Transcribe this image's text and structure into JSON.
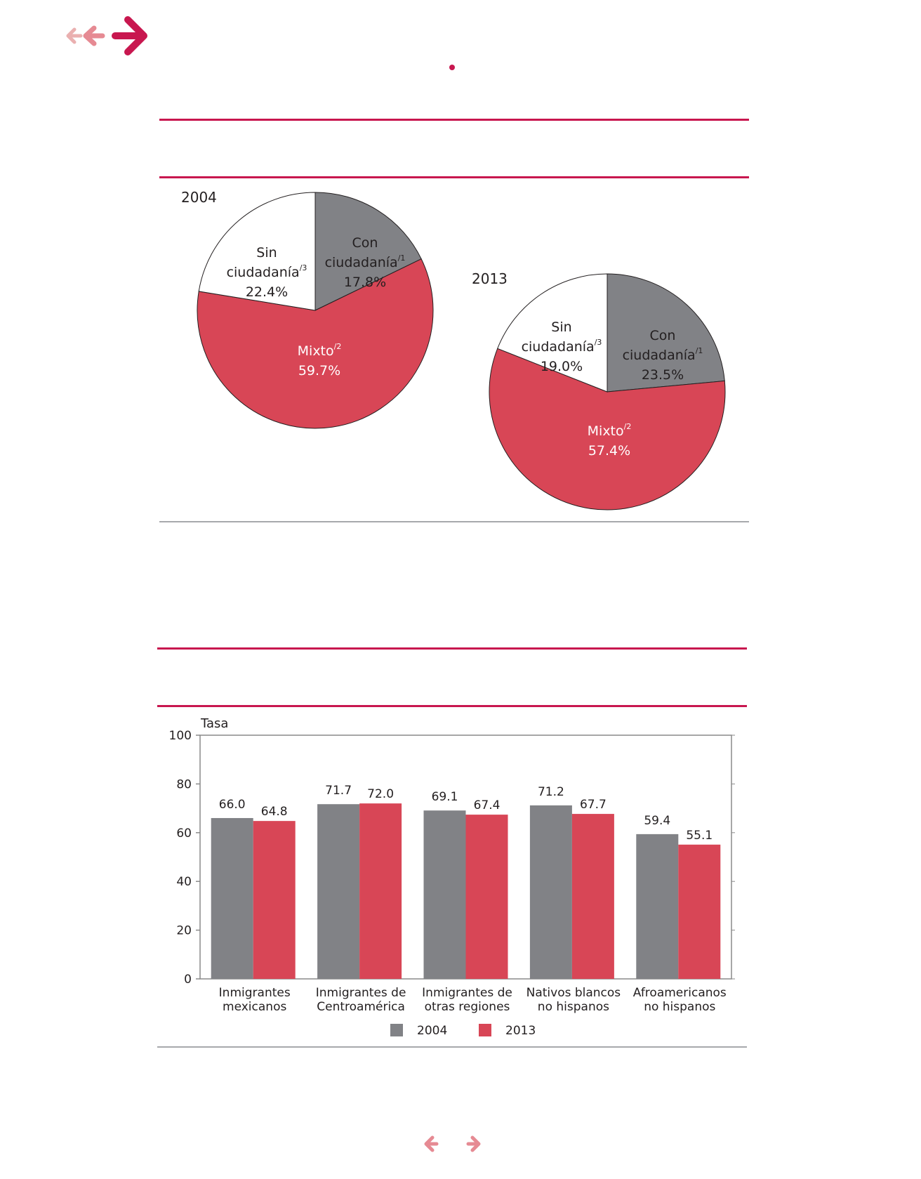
{
  "colors": {
    "accent": "#c8174f",
    "accent_light": "#e89a9e",
    "gray_series": "#818286",
    "red_series": "#d84656",
    "rule_gray": "#a7a9ac",
    "axis": "#8a8a8a",
    "label_white": "#ffffff"
  },
  "icons": {
    "back_small": "arrow-left-icon",
    "back": "arrow-left-icon",
    "forward": "arrow-right-icon",
    "page_prev": "chevron-left-icon",
    "page_next": "chevron-right-icon"
  },
  "chart_data": [
    {
      "type": "pie",
      "title": "2004",
      "slices": [
        {
          "label_line1": "Con",
          "label_line2": "ciudadanía",
          "sup": "/1",
          "value": 17.8,
          "display": "17.8%",
          "color": "#818286"
        },
        {
          "label_line1": "Mixto",
          "label_line2": "",
          "sup": "/2",
          "value": 59.7,
          "display": "59.7%",
          "color": "#d84656"
        },
        {
          "label_line1": "Sin",
          "label_line2": "ciudadanía",
          "sup": "/3",
          "value": 22.4,
          "display": "22.4%",
          "color": "#ffffff"
        }
      ]
    },
    {
      "type": "pie",
      "title": "2013",
      "slices": [
        {
          "label_line1": "Con",
          "label_line2": "ciudadanía",
          "sup": "/1",
          "value": 23.5,
          "display": "23.5%",
          "color": "#818286"
        },
        {
          "label_line1": "Mixto",
          "label_line2": "",
          "sup": "/2",
          "value": 57.4,
          "display": "57.4%",
          "color": "#d84656"
        },
        {
          "label_line1": "Sin",
          "label_line2": "ciudadanía",
          "sup": "/3",
          "value": 19.0,
          "display": "19.0%",
          "color": "#ffffff"
        }
      ]
    },
    {
      "type": "bar",
      "ylabel": "Tasa",
      "ylim": [
        0,
        100
      ],
      "yticks": [
        0,
        20,
        40,
        60,
        80,
        100
      ],
      "categories": [
        [
          "Inmigrantes",
          "mexicanos"
        ],
        [
          "Inmigrantes de",
          "Centroamérica"
        ],
        [
          "Inmigrantes de",
          "otras regiones"
        ],
        [
          "Nativos blancos",
          "no hispanos"
        ],
        [
          "Afroamericanos",
          "no hispanos"
        ]
      ],
      "series": [
        {
          "name": "2004",
          "color": "#818286",
          "values": [
            66.0,
            71.7,
            69.1,
            71.2,
            59.4
          ],
          "labels": [
            "66.0",
            "71.7",
            "69.1",
            "71.2",
            "59.4"
          ]
        },
        {
          "name": "2013",
          "color": "#d84656",
          "values": [
            64.8,
            72.0,
            67.4,
            67.7,
            55.1
          ],
          "labels": [
            "64.8",
            "72.0",
            "67.4",
            "67.7",
            "55.1"
          ]
        }
      ],
      "legend": "bottom",
      "grid": false
    }
  ]
}
